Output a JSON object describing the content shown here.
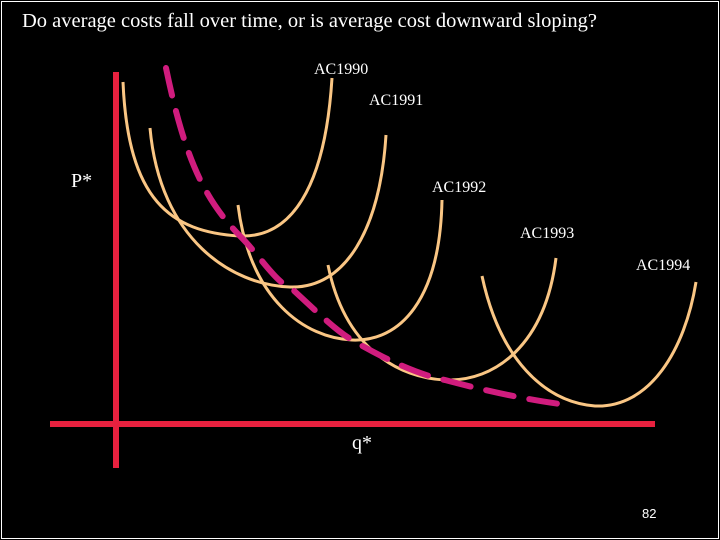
{
  "title": "Do average costs fall over time, or is average cost downward sloping?",
  "axis": {
    "y_label": "P*",
    "x_label": "q*"
  },
  "curves": [
    {
      "label": "AC1990"
    },
    {
      "label": "AC1991"
    },
    {
      "label": "AC1992"
    },
    {
      "label": "AC1993"
    },
    {
      "label": "AC1994"
    }
  ],
  "page_number": "82",
  "colors": {
    "background": "#000000",
    "axis": "#e8213f",
    "ac_curve": "#fac684",
    "envelope": "#d01c7e",
    "text": "#ffffff"
  }
}
